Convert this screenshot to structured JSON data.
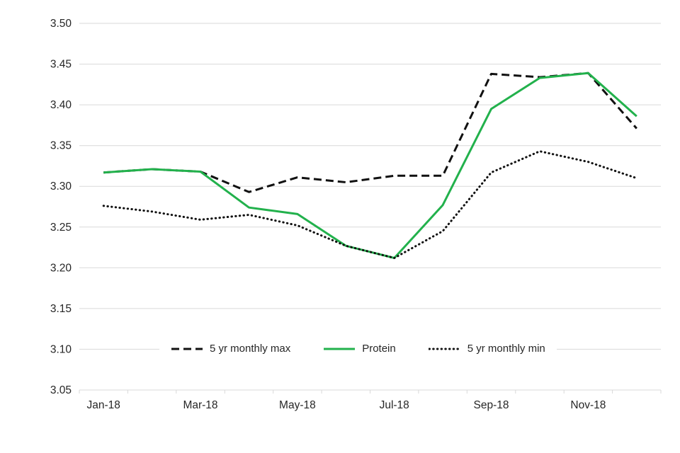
{
  "chart_data": {
    "type": "line",
    "title": "",
    "xlabel": "",
    "ylabel": "",
    "x": [
      "Jan-18",
      "Feb-18",
      "Mar-18",
      "Apr-18",
      "May-18",
      "Jun-18",
      "Jul-18",
      "Aug-18",
      "Sep-18",
      "Oct-18",
      "Nov-18",
      "Dec-18"
    ],
    "x_tick_labels_shown": [
      "Jan-18",
      "Mar-18",
      "May-18",
      "Jul-18",
      "Sep-18",
      "Nov-18"
    ],
    "x_tick_label_indices": [
      0,
      2,
      4,
      6,
      8,
      10
    ],
    "ylim": [
      3.05,
      3.5
    ],
    "y_ticks": [
      "3.05",
      "3.10",
      "3.15",
      "3.20",
      "3.25",
      "3.30",
      "3.35",
      "3.40",
      "3.45",
      "3.50"
    ],
    "y_tick_values": [
      3.05,
      3.1,
      3.15,
      3.2,
      3.25,
      3.3,
      3.35,
      3.4,
      3.45,
      3.5
    ],
    "grid": true,
    "legend_position": "inside-bottom",
    "series": [
      {
        "name": "5 yr monthly max",
        "style": "dashed",
        "color": "#111111",
        "values": [
          3.317,
          3.321,
          3.318,
          3.293,
          3.311,
          3.305,
          3.313,
          3.313,
          3.438,
          3.434,
          3.439,
          3.371
        ]
      },
      {
        "name": "Protein",
        "style": "solid",
        "color": "#22b14c",
        "values": [
          3.317,
          3.321,
          3.318,
          3.274,
          3.266,
          3.227,
          3.212,
          3.277,
          3.395,
          3.433,
          3.439,
          3.386
        ]
      },
      {
        "name": "5 yr monthly min",
        "style": "dotted",
        "color": "#111111",
        "values": [
          3.276,
          3.269,
          3.259,
          3.265,
          3.252,
          3.227,
          3.212,
          3.245,
          3.317,
          3.343,
          3.33,
          3.31
        ]
      }
    ],
    "colors": {
      "background": "#ffffff",
      "gridline": "#d9d9d9",
      "axis_text": "#262626",
      "protein_green": "#22b14c",
      "black_series": "#111111"
    }
  }
}
